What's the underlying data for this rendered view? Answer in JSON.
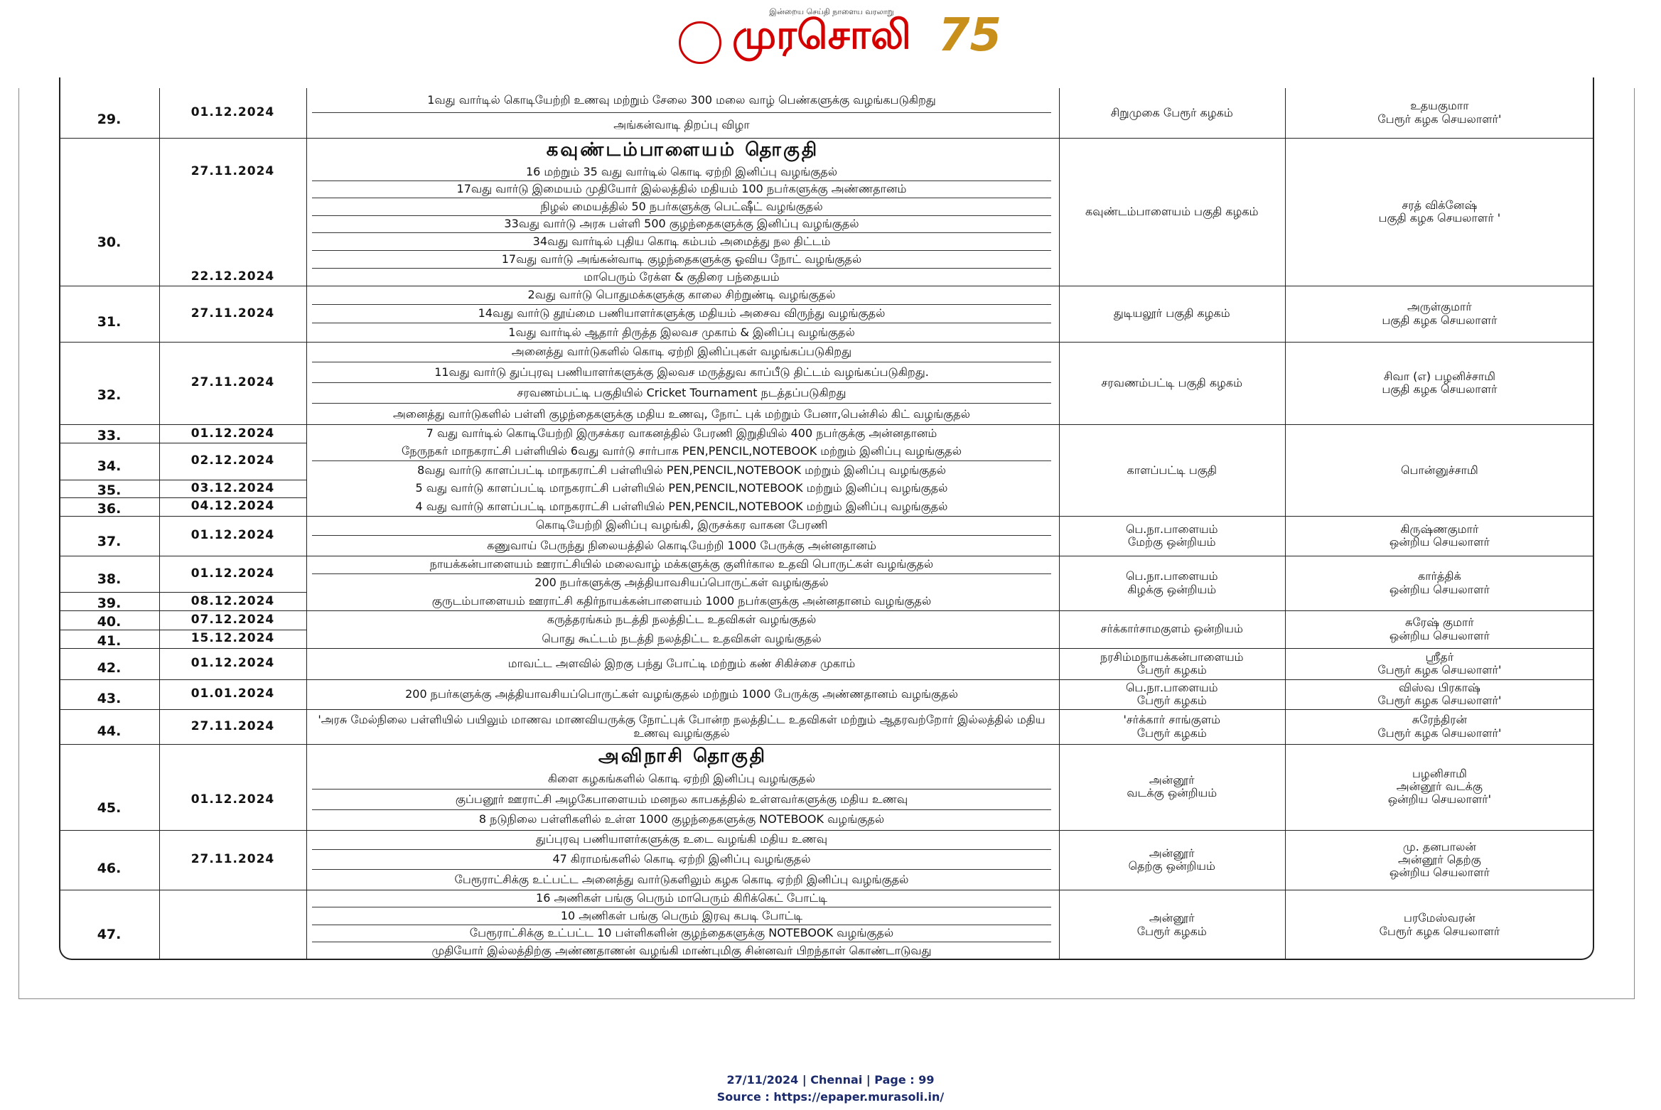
{
  "header": {
    "tagline": "இன்றைய செய்தி நாளைய வரலாறு",
    "title": "முரசொலி",
    "badge": "75"
  },
  "groups": [
    {
      "entries": [
        {
          "no": "29.",
          "dates": [
            "01.12.2024"
          ],
          "events": [
            "1வது வார்டில் கொடியேற்றி உணவு மற்றும் சேலை 300 மலை வாழ் பெண்களுக்கு வழங்கபடுகிறது",
            "அங்கன்வாடி திறப்பு விழா"
          ]
        }
      ],
      "org": [
        "சிறுமுகை பேரூர் கழகம்"
      ],
      "person": [
        "உதயகுமாா",
        "பேரூர் கழக செயலாளர்'"
      ]
    },
    {
      "section": "கவுண்டம்பாளையம்  தொகுதி",
      "entries": [
        {
          "no": "30.",
          "dates": [
            "27.11.2024",
            "22.12.2024"
          ],
          "events": [
            "16 மற்றும் 35 வது வார்டில் கொடி ஏற்றி இனிப்பு வழங்குதல்",
            "17வது வார்டு இமையம் முதியோர் இல்லத்தில் மதியம் 100 நபர்களுக்கு அண்ணதானம்",
            "நிழல் மையத்தில் 50 நபர்களுக்கு பெட்ஷீட் வழங்குதல்",
            "33வது வார்டு அரசு பள்ளி 500 குழந்தைகளுக்கு இனிப்பு வழங்குதல்",
            "34வது வார்டில் புதிய கொடி கம்பம் அமைத்து நல திட்டம்",
            "17வது வார்டு அங்கன்வாடி குழந்தைகளுக்கு ஓவிய நோட் வழங்குதல்",
            "மாபெரும் ரேக்ள & குதிரை  பந்தையம்"
          ]
        }
      ],
      "org": [
        "கவுண்டம்பாளையம் பகுதி கழகம்"
      ],
      "person": [
        "சரத் விக்னேஷ்",
        "பகுதி கழக செயலாளர் '"
      ]
    },
    {
      "entries": [
        {
          "no": "31.",
          "dates": [
            "27.11.2024"
          ],
          "events": [
            "2வது வார்டு பொதுமக்களுக்கு காலை சிற்றுண்டி வழங்குதல்",
            "14வது வார்டு தூய்மை பணியாளர்களுக்கு மதியம் அசைவ விருந்து வழங்குதல்",
            "1வது வார்டில் ஆதார் திருத்த இலவச முகாம் & இனிப்பு வழங்குதல்"
          ]
        }
      ],
      "org": [
        "துடியலூர் பகுதி கழகம்"
      ],
      "person": [
        "அருள்குமார்",
        "பகுதி கழக செயலாளர்"
      ]
    },
    {
      "entries": [
        {
          "no": "32.",
          "dates": [
            "27.11.2024"
          ],
          "events": [
            "அனைத்து வார்டுகளில் கொடி ஏற்றி இனிப்புகள் வழங்கப்படுகிறது",
            "11வது வார்டு துப்புரவு பணியாளர்களுக்கு இலவச மருத்துவ காப்பீடு திட்டம் வழங்கப்படுகிறது.",
            "சரவணம்பட்டி பகுதியில் Cricket Tournament நடத்தப்படுகிறது",
            "அனைத்து வார்டுகளில் பள்ளி குழந்தைகளுக்கு மதிய உணவு, நோட் புக் மற்றும் பேனா,பென்சில் கிட் வழங்குதல்"
          ]
        }
      ],
      "org": [
        "சரவணம்பட்டி பகுதி கழகம்"
      ],
      "person": [
        "சிவா (எ) பழனிச்சாமி",
        "பகுதி கழக செயலாளர்"
      ]
    },
    {
      "entries": [
        {
          "no": "33.",
          "dates": [
            "01.12.2024"
          ],
          "events": [
            "7 வது வார்டில் கொடியேற்றி இருசக்கர வாகனத்தில் பேரணி இறுதியில் 400 நபர்குக்கு அன்னதானம்"
          ]
        },
        {
          "no": "34.",
          "dates": [
            "02.12.2024"
          ],
          "events": [
            "நேருநகர் மாநகராட்சி பள்ளியில் 6வது வார்டு சார்பாக PEN,PENCIL,NOTEBOOK மற்றும் இனிப்பு வழங்குதல்",
            "8வது வார்டு காளப்பட்டி மாநகராட்சி பள்ளியில் PEN,PENCIL,NOTEBOOK மற்றும் இனிப்பு வழங்குதல்"
          ]
        },
        {
          "no": "35.",
          "dates": [
            "03.12.2024"
          ],
          "events": [
            "5  வது வார்டு காளப்பட்டி மாநகராட்சி பள்ளியில் PEN,PENCIL,NOTEBOOK மற்றும் இனிப்பு வழங்குதல்"
          ]
        },
        {
          "no": "36.",
          "dates": [
            "04.12.2024"
          ],
          "events": [
            "4  வது வார்டு காளப்பட்டி மாநகராட்சி பள்ளியில் PEN,PENCIL,NOTEBOOK மற்றும் இனிப்பு வழங்குதல்"
          ]
        }
      ],
      "org": [
        "காளப்பட்டி பகுதி"
      ],
      "person": [
        "பொன்னுச்சாமி"
      ]
    },
    {
      "entries": [
        {
          "no": "37.",
          "dates": [
            "01.12.2024"
          ],
          "events": [
            "கொடியேற்றி இனிப்பு வழங்கி, இருசக்கர வாகன பேரணி",
            "கணுவாய் பேருந்து நிலையத்தில் கொடியேற்றி 1000 பேருக்கு அன்னதானம்"
          ]
        }
      ],
      "org": [
        "பெ.நா.பாளையம்",
        "மேற்கு ஒன்றியம்"
      ],
      "person": [
        "கிருஷ்ணகுமார்",
        "ஒன்றிய செயலாளர்"
      ]
    },
    {
      "entries": [
        {
          "no": "38.",
          "dates": [
            "01.12.2024"
          ],
          "events": [
            "நாயக்கன்பாளையம் ஊராட்சியில் மலைவாழ் மக்களுக்கு குளிர்கால உதவி பொருட்கள் வழங்குதல்",
            "200 நபர்களுக்கு அத்தியாவசியப்பொருட்கள் வழங்குதல்"
          ]
        },
        {
          "no": "39.",
          "dates": [
            "08.12.2024"
          ],
          "events": [
            "குருடம்பாளையம் ஊராட்சி கதிர்நாயக்கன்பாளையம் 1000 நபர்களுக்கு அன்னதானம் வழங்குதல்"
          ]
        }
      ],
      "org": [
        "பெ.நா.பாளையம்",
        "கிழக்கு ஒன்றியம்"
      ],
      "person": [
        "கார்த்திக்",
        "ஒன்றிய செயலாளர்"
      ]
    },
    {
      "entries": [
        {
          "no": "40.",
          "dates": [
            "07.12.2024"
          ],
          "events": [
            "கருத்தரங்கம் நடத்தி நலத்திட்ட உதவிகள் வழங்குதல்"
          ]
        },
        {
          "no": "41.",
          "dates": [
            "15.12.2024"
          ],
          "events": [
            "பொது கூட்டம் நடத்தி நலத்திட்ட உதவிகள் வழங்குதல்"
          ]
        }
      ],
      "org": [
        "சர்க்கார்சாமகுளம் ஒன்றியம்"
      ],
      "person": [
        "சுரேஷ் குமார்",
        "ஒன்றிய செயலாளர்"
      ]
    },
    {
      "entries": [
        {
          "no": "42.",
          "dates": [
            "01.12.2024"
          ],
          "events": [
            "மாவட்ட அளவில் இறகு பந்து போட்டி மற்றும் கண் சிகிச்சை முகாம்"
          ]
        }
      ],
      "org": [
        "நரசிம்மநாயக்கன்பாளையம்",
        "பேரூர் கழகம்"
      ],
      "person": [
        "ஸ்ரீதர்",
        "பேரூர் கழக செயலாளர்'"
      ]
    },
    {
      "entries": [
        {
          "no": "43.",
          "dates": [
            "01.01.2024"
          ],
          "events": [
            "200 நபர்களுக்கு அத்தியாவசியப்பொருட்கள் வழங்குதல் மற்றும் 1000 பேருக்கு அண்ணதானம் வழங்குதல்"
          ]
        }
      ],
      "org": [
        "பெ.நா.பாளையம்",
        "பேரூர் கழகம்"
      ],
      "person": [
        "விஸ்வ பிரகாஷ்",
        "பேரூர் கழக செயலாளர்'"
      ]
    },
    {
      "entries": [
        {
          "no": "44.",
          "dates": [
            "27.11.2024"
          ],
          "events": [
            "'அரசு மேல்நிலை பள்ளியில் பயிலும் மாணவ மாணவியருக்கு நோட்புக் போன்ற நலத்திட்ட உதவிகள் மற்றும் ஆதரவற்றோர் இல்லத்தில் மதிய உணவு வழங்குதல்"
          ]
        }
      ],
      "org": [
        "'சர்க்கார் சாங்குளம்",
        "பேரூர் கழகம்"
      ],
      "person": [
        "சுரேந்திரன்",
        "பேரூர் கழக செயலாளர்'"
      ]
    },
    {
      "section": "அவிநாசி  தொகுதி",
      "entries": [
        {
          "no": "45.",
          "dates": [
            "01.12.2024"
          ],
          "events": [
            "கிளை கழகங்களில் கொடி ஏற்றி இனிப்பு வழங்குதல்",
            "குப்பனூர் ஊராட்சி அழகேபாளையம் மனநல காபகத்தில் உள்ளவர்களுக்கு மதிய உணவு",
            "8 நடுநிலை பள்ளிகளில் உள்ள 1000 குழந்தைகளுக்கு  NOTEBOOK வழங்குதல்"
          ]
        }
      ],
      "org": [
        "அன்னூர்",
        "வடக்கு ஒன்றியம்"
      ],
      "person": [
        "பழனிசாமி",
        "அன்னூர் வடக்கு",
        "ஒன்றிய செயலாளர்'"
      ]
    },
    {
      "entries": [
        {
          "no": "46.",
          "dates": [
            "27.11.2024"
          ],
          "events": [
            "துப்புரவு பணியாளர்களுக்கு உடை வழங்கி மதிய உணவு",
            "47 கிராமங்களில் கொடி ஏற்றி இனிப்பு வழங்குதல்",
            "பேரூராட்சிக்கு உட்பட்ட அனைத்து வார்டுகளிலும் கழக கொடி ஏற்றி இனிப்பு வழங்குதல்"
          ]
        }
      ],
      "org": [
        "அன்னூர்",
        "தெற்கு ஒன்றியம்"
      ],
      "person": [
        "மு. தனபாலன்",
        "அன்னூர் தெற்கு",
        "ஒன்றிய செயலாளர்"
      ]
    },
    {
      "entries": [
        {
          "no": "47.",
          "events": [
            "16 அணிகள் பங்கு பெரும் மாபெரும் கிரிக்கெட் போட்டி",
            "10 அணிகள் பங்கு பெரும்  இரவு கபடி போட்டி",
            "பேரூராட்சிக்கு உட்பட்ட 10 பள்ளிகளின் குழந்தைகளுக்கு NOTEBOOK வழங்குதல்",
            "முதியோர் இல்லத்திற்கு அண்ணதாணன் வழங்கி மாண்புமிகு சின்னவர் பிறந்தாள் கொண்டாடுவது"
          ]
        }
      ],
      "org": [
        "அன்னூர்",
        "பேரூர் கழகம்"
      ],
      "person": [
        "பரமேஸ்வரன்",
        "பேரூர் கழக செயலாளர்"
      ]
    }
  ],
  "footer": {
    "line1": "27/11/2024 | Chennai | Page : 99",
    "line2": "Source : https://epaper.murasoli.in/"
  }
}
